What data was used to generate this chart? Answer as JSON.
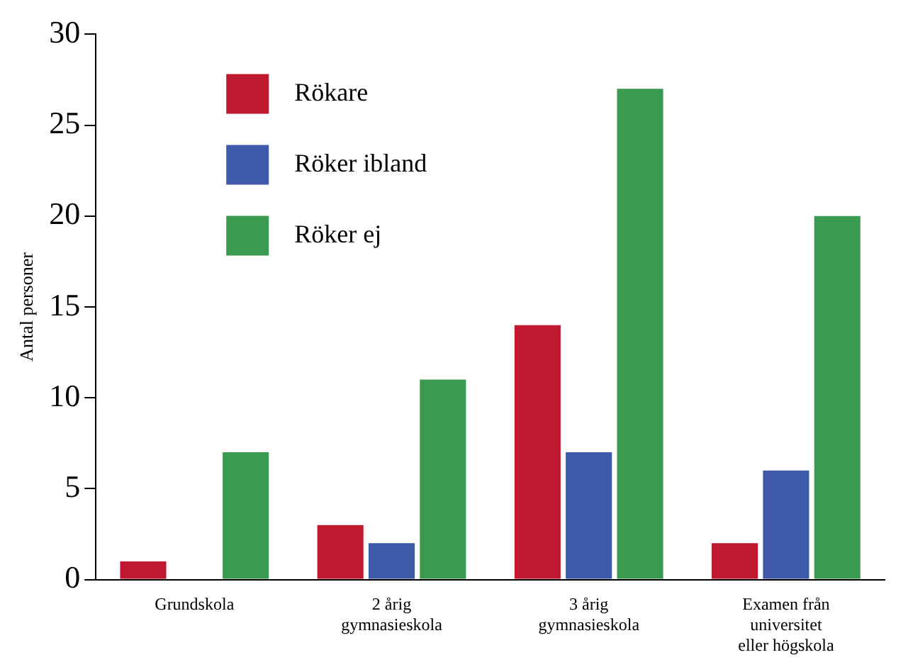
{
  "chart_data": {
    "type": "bar",
    "ylabel": "Antal personer",
    "categories": [
      "Grundskola",
      "2 årig gymnasieskola",
      "3 årig gymnasieskola",
      "Examen från universitet eller högskola"
    ],
    "series": [
      {
        "name": "Rökare",
        "color": "#c0192f",
        "values": [
          1,
          3,
          14,
          2
        ]
      },
      {
        "name": "Röker ibland",
        "color": "#3d59a7",
        "values": [
          0,
          2,
          7,
          6
        ]
      },
      {
        "name": "Röker ej",
        "color": "#3a9a4f",
        "values": [
          7,
          11,
          27,
          20
        ]
      }
    ],
    "ylim": [
      0,
      30
    ],
    "yticks": [
      0,
      5,
      10,
      15,
      20,
      25,
      30
    ],
    "grid": false,
    "legend": "top left"
  }
}
